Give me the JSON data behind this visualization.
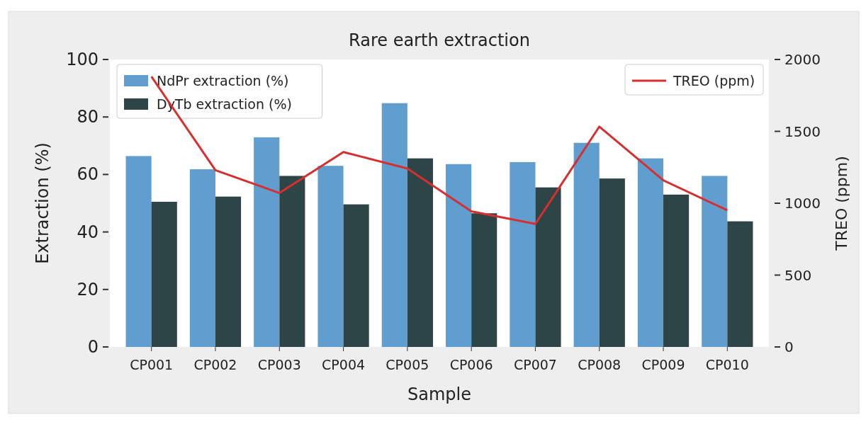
{
  "chart_data": {
    "type": "bar",
    "title": "Rare earth extraction",
    "xlabel": "Sample",
    "ylabel": "Extraction  (%)",
    "y2label": "TREO (ppm)",
    "categories": [
      "CP001",
      "CP002",
      "CP003",
      "CP004",
      "CP005",
      "CP006",
      "CP007",
      "CP008",
      "CP009",
      "CP010"
    ],
    "series": [
      {
        "name": "NdPr extraction (%)",
        "color": "#5f9ecf",
        "values": [
          66.4,
          61.8,
          72.9,
          63.0,
          84.8,
          63.6,
          64.3,
          71.0,
          65.6,
          59.5
        ]
      },
      {
        "name": "DyTb extraction (%)",
        "color": "#2e4548",
        "values": [
          50.5,
          52.3,
          59.5,
          49.6,
          65.6,
          46.5,
          55.5,
          58.6,
          53.0,
          43.7
        ]
      },
      {
        "name": "TREO (ppm)",
        "type": "line",
        "axis": "y2",
        "color": "#d62f2f",
        "values": [
          1881,
          1230,
          1071,
          1356,
          1241,
          943,
          856,
          1533,
          1159,
          951
        ]
      }
    ],
    "ylim": [
      0,
      100
    ],
    "yticks": [
      0,
      20,
      40,
      60,
      80,
      100
    ],
    "y2lim": [
      0,
      2000
    ],
    "y2ticks": [
      0,
      500,
      1000,
      1500,
      2000
    ],
    "legend": "top left",
    "grid": false
  }
}
